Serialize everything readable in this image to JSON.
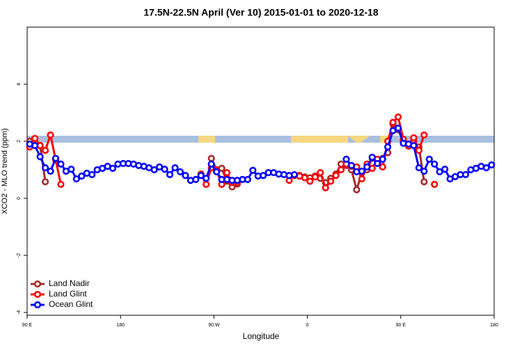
{
  "chart_data": {
    "type": "line",
    "title": "17.5N-22.5N April (Ver 10)   2015-01-01 to 2020-12-18",
    "x_label": "Longitude",
    "y_label": "XCO2 - MLO trend (ppm)",
    "xlim": [
      90,
      540
    ],
    "xticks": [
      {
        "value": 90,
        "label": "90 E"
      },
      {
        "value": 180,
        "label": "180"
      },
      {
        "value": 270,
        "label": "90 W"
      },
      {
        "value": 360,
        "label": "0"
      },
      {
        "value": 450,
        "label": "90 E"
      },
      {
        "value": 540,
        "label": "180"
      }
    ],
    "ylim": [
      -4.1,
      6
    ],
    "yticks": [
      -4,
      -2,
      0,
      2,
      4
    ],
    "legend": "bottom-left",
    "x": [
      92.5,
      97.5,
      102.5,
      107.5,
      112.5,
      117.5,
      122.5,
      127.5,
      132.5,
      137.5,
      142.5,
      147.5,
      152.5,
      157.5,
      162.5,
      167.5,
      172.5,
      177.5,
      182.5,
      187.5,
      192.5,
      197.5,
      202.5,
      207.5,
      212.5,
      217.5,
      222.5,
      227.5,
      232.5,
      237.5,
      242.5,
      247.5,
      252.5,
      257.5,
      262.5,
      267.5,
      272.5,
      277.5,
      282.5,
      287.5,
      292.5,
      297.5,
      302.5,
      307.5,
      312.5,
      317.5,
      322.5,
      327.5,
      332.5,
      337.5,
      342.5,
      347.5,
      352.5,
      357.5,
      362.5,
      367.5,
      372.5,
      377.5,
      382.5,
      387.5,
      392.5,
      397.5,
      402.5,
      407.5,
      412.5,
      417.5,
      422.5,
      427.5,
      432.5,
      437.5,
      442.5,
      447.5,
      452.5,
      457.5,
      462.5,
      467.5,
      472.5,
      477.5,
      482.5,
      487.5,
      492.5,
      497.5,
      502.5,
      507.5,
      512.5,
      517.5,
      522.5,
      527.5,
      532.5,
      537.5
    ],
    "series": [
      {
        "name": "Land Nadir",
        "color": "#a52a2a",
        "values": [
          2.0,
          1.95,
          1.85,
          0.58,
          null,
          null,
          null,
          null,
          null,
          null,
          null,
          null,
          null,
          null,
          null,
          null,
          null,
          null,
          null,
          null,
          null,
          null,
          null,
          null,
          null,
          null,
          null,
          null,
          null,
          null,
          null,
          null,
          null,
          null,
          null,
          1.4,
          1.0,
          1.05,
          0.6,
          0.4,
          0.5,
          null,
          null,
          null,
          null,
          null,
          null,
          null,
          null,
          null,
          null,
          null,
          0.8,
          0.75,
          0.72,
          0.78,
          0.7,
          0.55,
          0.7,
          0.85,
          1.2,
          1.15,
          1.0,
          0.3,
          0.9,
          1.0,
          1.4,
          1.3,
          1.4,
          1.6,
          2.6,
          2.4,
          2.0,
          1.9,
          2.0,
          1.8,
          0.58,
          null,
          null,
          null,
          null,
          null,
          null,
          null,
          null,
          null,
          null,
          null,
          null,
          null
        ]
      },
      {
        "name": "Land Glint",
        "color": "#ff0000",
        "values": [
          1.8,
          2.1,
          1.85,
          1.68,
          2.22,
          1.35,
          0.49,
          null,
          null,
          null,
          null,
          null,
          null,
          null,
          null,
          null,
          null,
          null,
          null,
          null,
          null,
          null,
          null,
          null,
          null,
          null,
          null,
          null,
          null,
          null,
          null,
          null,
          null,
          0.85,
          0.49,
          1.07,
          1.0,
          0.49,
          0.9,
          0.55,
          0.55,
          null,
          null,
          null,
          null,
          null,
          null,
          null,
          null,
          null,
          0.63,
          0.8,
          0.78,
          0.72,
          0.6,
          0.75,
          0.9,
          0.37,
          0.6,
          0.8,
          1.0,
          1.2,
          1.12,
          1.1,
          0.68,
          1.2,
          1.05,
          1.37,
          1.1,
          2.0,
          2.66,
          2.85,
          2.07,
          1.83,
          2.12,
          1.68,
          2.22,
          null,
          0.49,
          null,
          null,
          null,
          null,
          null,
          null,
          null,
          null,
          null,
          null,
          null
        ]
      },
      {
        "name": "Ocean Glint",
        "color": "#0000ff",
        "values": [
          1.9,
          1.85,
          1.46,
          1.07,
          0.95,
          1.4,
          1.2,
          0.95,
          1.02,
          0.68,
          0.78,
          0.88,
          0.83,
          1.0,
          1.05,
          1.12,
          1.05,
          1.2,
          1.22,
          1.22,
          1.2,
          1.15,
          1.12,
          1.07,
          1.0,
          1.1,
          1.02,
          0.83,
          1.07,
          0.93,
          0.8,
          0.63,
          0.66,
          0.8,
          0.7,
          1.2,
          0.93,
          0.66,
          0.66,
          0.63,
          0.63,
          0.66,
          0.66,
          0.98,
          0.78,
          0.8,
          0.9,
          0.9,
          0.85,
          0.83,
          0.8,
          0.83,
          null,
          null,
          null,
          null,
          null,
          null,
          null,
          null,
          null,
          1.37,
          1.15,
          0.93,
          0.95,
          1.1,
          1.44,
          1.22,
          1.37,
          1.8,
          2.37,
          2.46,
          1.93,
          1.9,
          1.85,
          1.07,
          0.95,
          1.37,
          1.2,
          0.93,
          1.02,
          0.68,
          0.76,
          0.83,
          0.83,
          1.0,
          1.05,
          1.12,
          1.07,
          1.17
        ]
      }
    ]
  }
}
